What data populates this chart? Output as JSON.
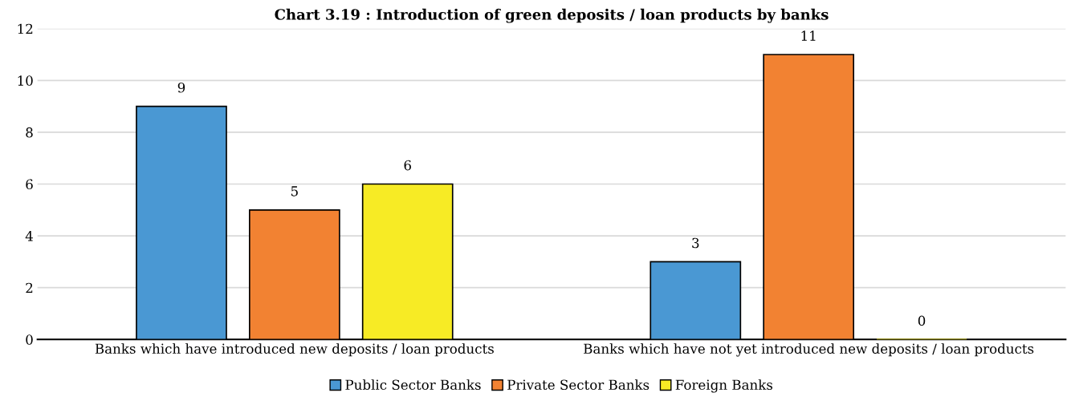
{
  "chart_data": {
    "type": "bar",
    "title": "Chart 3.19 : Introduction of green deposits / loan products by banks",
    "categories": [
      "Banks which have introduced new deposits / loan products",
      "Banks which have not yet introduced new deposits / loan products"
    ],
    "series": [
      {
        "name": "Public Sector Banks",
        "color": "#4a98d3",
        "values": [
          9,
          3
        ]
      },
      {
        "name": "Private Sector Banks",
        "color": "#f28232",
        "values": [
          5,
          11
        ]
      },
      {
        "name": "Foreign Banks",
        "color": "#f7eb25",
        "values": [
          6,
          0
        ]
      }
    ],
    "ylim": [
      0,
      12
    ],
    "yticks": [
      0,
      2,
      4,
      6,
      8,
      10,
      12
    ],
    "grid": "y",
    "legend": "bottom",
    "data_labels": true
  }
}
